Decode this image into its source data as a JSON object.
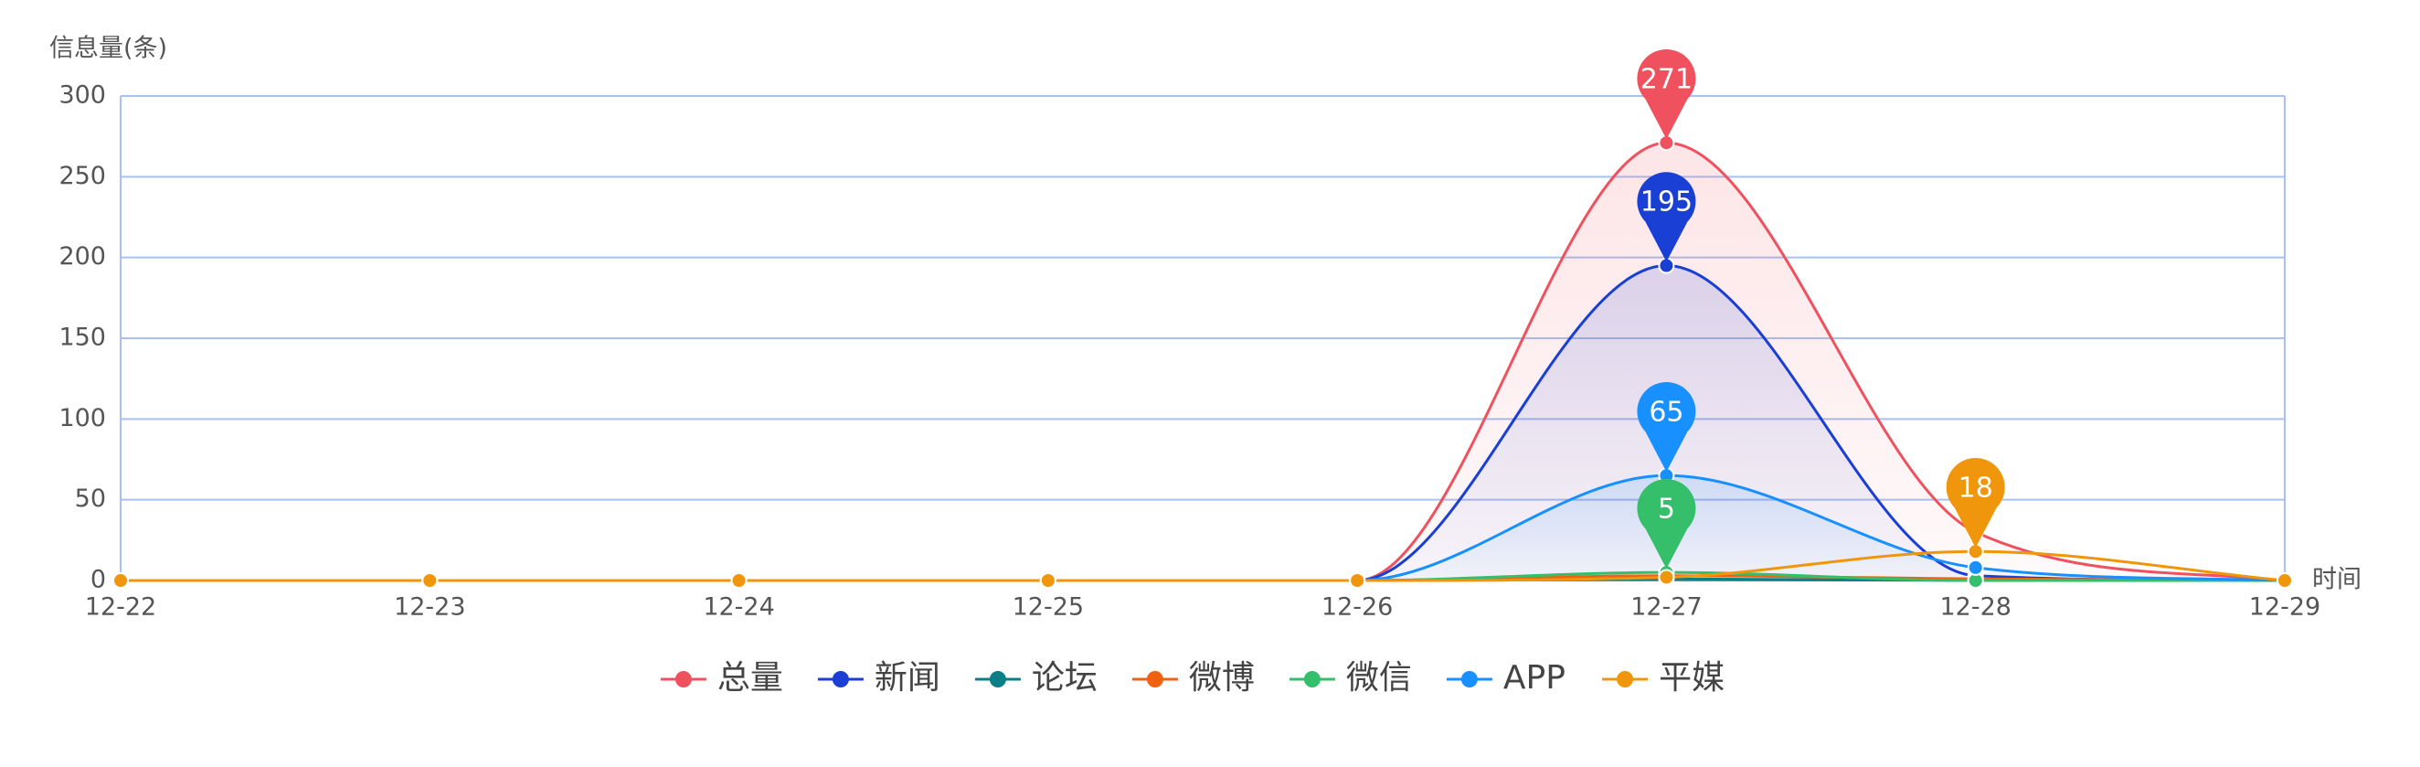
{
  "chart_data": {
    "type": "line",
    "y_axis_label": "信息量(条)",
    "x_axis_label": "时间",
    "categories": [
      "12-22",
      "12-23",
      "12-24",
      "12-25",
      "12-26",
      "12-27",
      "12-28",
      "12-29"
    ],
    "ylim": [
      0,
      300
    ],
    "yticks": [
      0,
      50,
      100,
      150,
      200,
      250,
      300
    ],
    "grid": true,
    "smooth": true,
    "legend": "bottom",
    "series": [
      {
        "name": "总量",
        "color": "#f0515f",
        "area": true,
        "max_pin": true,
        "values": [
          0,
          0,
          0,
          0,
          0,
          271,
          30,
          0
        ]
      },
      {
        "name": "新闻",
        "color": "#1a3fd4",
        "area": true,
        "max_pin": true,
        "values": [
          0,
          0,
          0,
          0,
          0,
          195,
          3,
          0
        ]
      },
      {
        "name": "论坛",
        "color": "#0b7f87",
        "area": false,
        "max_pin": false,
        "values": [
          0,
          0,
          0,
          0,
          0,
          1,
          0,
          0
        ]
      },
      {
        "name": "微博",
        "color": "#ef6310",
        "area": false,
        "max_pin": false,
        "values": [
          0,
          0,
          0,
          0,
          0,
          3,
          1,
          0
        ]
      },
      {
        "name": "微信",
        "color": "#36bf6a",
        "area": false,
        "max_pin": true,
        "values": [
          0,
          0,
          0,
          0,
          0,
          5,
          0,
          0
        ]
      },
      {
        "name": "APP",
        "color": "#1890ff",
        "area": true,
        "max_pin": true,
        "values": [
          0,
          0,
          0,
          0,
          0,
          65,
          8,
          0
        ]
      },
      {
        "name": "平媒",
        "color": "#f0960c",
        "area": false,
        "max_pin": true,
        "values": [
          0,
          0,
          0,
          0,
          0,
          2,
          18,
          0
        ]
      }
    ]
  }
}
